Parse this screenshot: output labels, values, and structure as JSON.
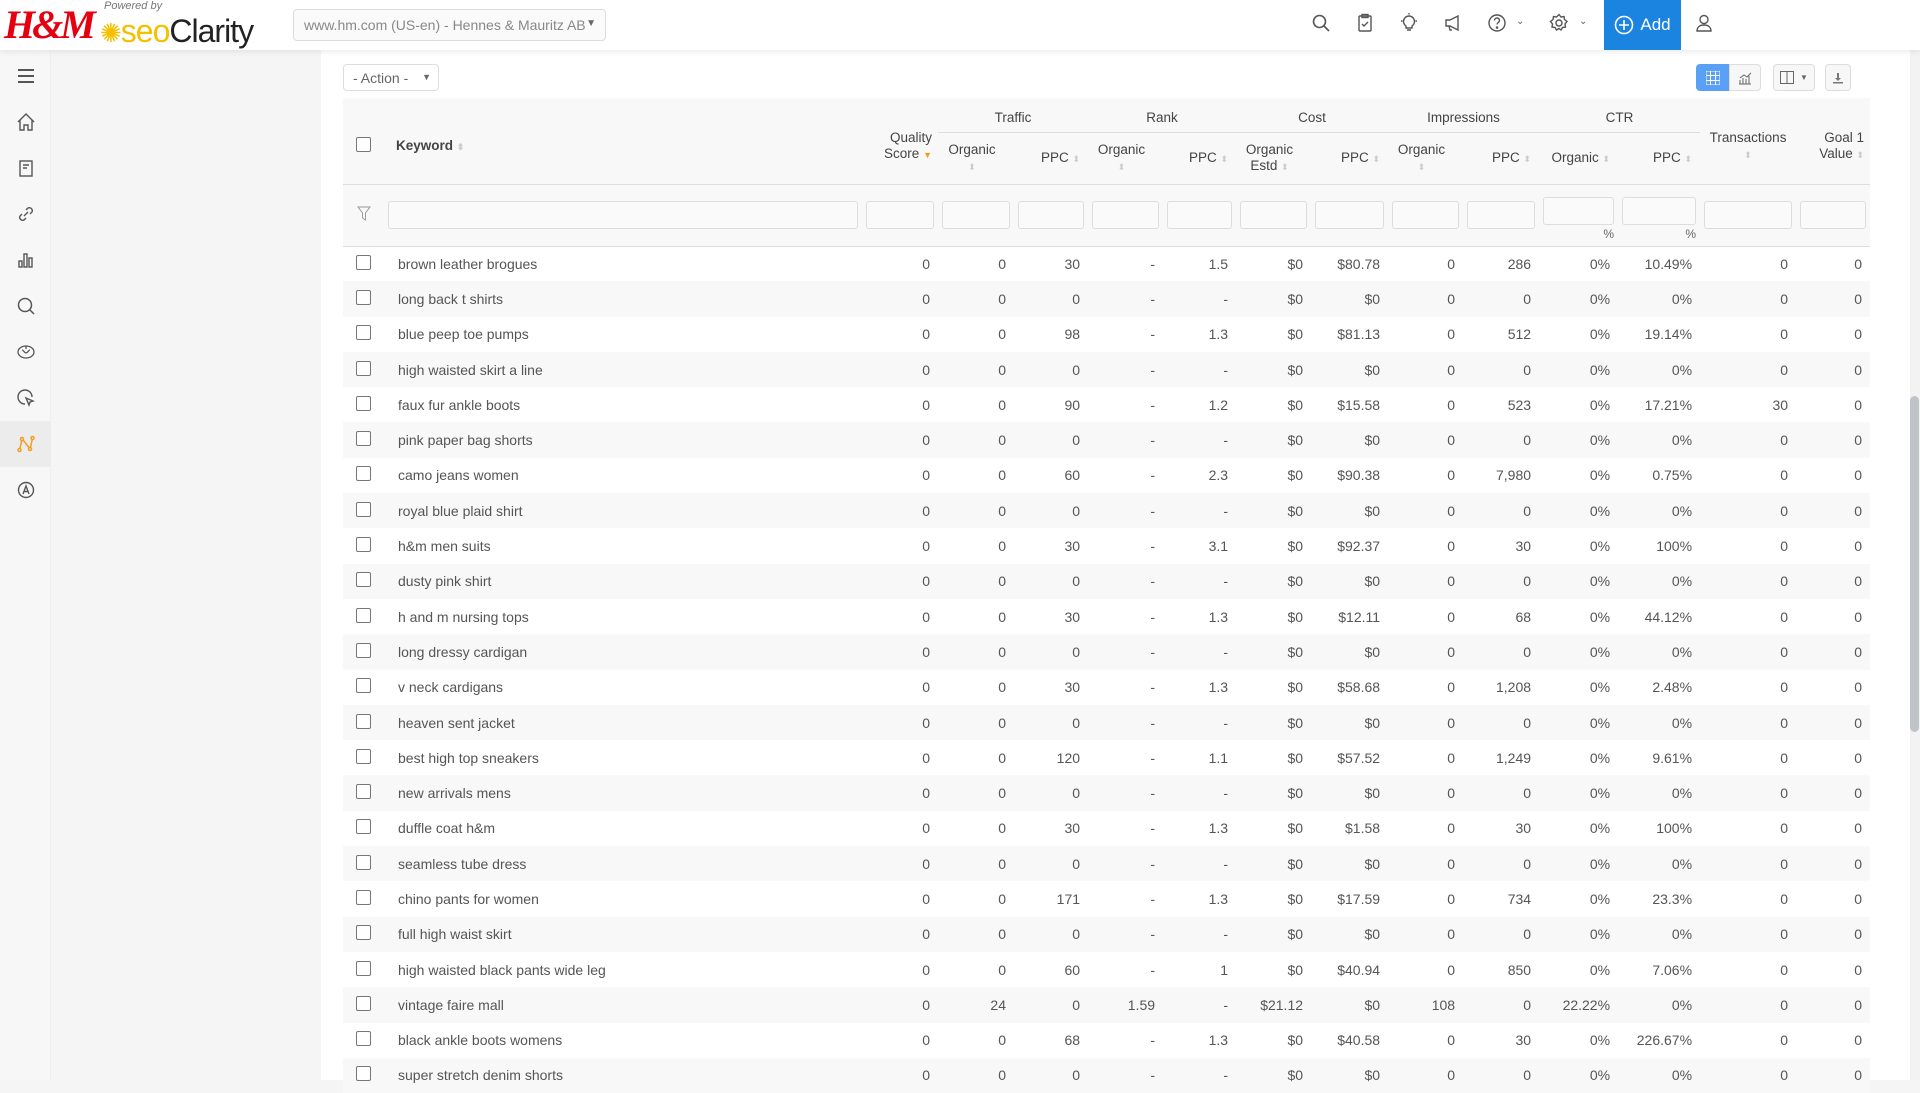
{
  "header": {
    "brand_logo": "H&M",
    "powered_by": "Powered by",
    "product_logo_a": "seo",
    "product_logo_b": "Clarity",
    "site_selector": "www.hm.com (US-en) - Hennes & Mauritz AB",
    "add_label": "Add",
    "icons": [
      "search-icon",
      "clipboard-check-icon",
      "lightbulb-icon",
      "megaphone-icon",
      "help-icon",
      "settings-icon",
      "user-icon"
    ]
  },
  "sidebar": {
    "items": [
      "menu",
      "home",
      "reports",
      "links",
      "analytics",
      "search",
      "brain",
      "click-research",
      "content-fusion",
      "automation"
    ],
    "active": "content-fusion",
    "active_color": "#f0a020"
  },
  "toolbar": {
    "action_label": "- Action -",
    "view_modes": [
      "table",
      "chart"
    ],
    "active_view": "table",
    "accent": "#5aa0f5"
  },
  "table": {
    "columns": {
      "keyword": "Keyword",
      "quality_score": "Quality Score",
      "groups": [
        "Traffic",
        "Rank",
        "Cost",
        "Impressions",
        "CTR"
      ],
      "organic": "Organic",
      "ppc": "PPC",
      "organic_estd": "Organic Estd",
      "transactions": "Transactions",
      "goal1": "Goal 1 Value"
    },
    "pct_label": "%",
    "rows": [
      [
        "brown leather brogues",
        "0",
        "0",
        "30",
        "-",
        "1.5",
        "$0",
        "$80.78",
        "0",
        "286",
        "0%",
        "10.49%",
        "0",
        "0"
      ],
      [
        "long back t shirts",
        "0",
        "0",
        "0",
        "-",
        "-",
        "$0",
        "$0",
        "0",
        "0",
        "0%",
        "0%",
        "0",
        "0"
      ],
      [
        "blue peep toe pumps",
        "0",
        "0",
        "98",
        "-",
        "1.3",
        "$0",
        "$81.13",
        "0",
        "512",
        "0%",
        "19.14%",
        "0",
        "0"
      ],
      [
        "high waisted skirt a line",
        "0",
        "0",
        "0",
        "-",
        "-",
        "$0",
        "$0",
        "0",
        "0",
        "0%",
        "0%",
        "0",
        "0"
      ],
      [
        "faux fur ankle boots",
        "0",
        "0",
        "90",
        "-",
        "1.2",
        "$0",
        "$15.58",
        "0",
        "523",
        "0%",
        "17.21%",
        "30",
        "0"
      ],
      [
        "pink paper bag shorts",
        "0",
        "0",
        "0",
        "-",
        "-",
        "$0",
        "$0",
        "0",
        "0",
        "0%",
        "0%",
        "0",
        "0"
      ],
      [
        "camo jeans women",
        "0",
        "0",
        "60",
        "-",
        "2.3",
        "$0",
        "$90.38",
        "0",
        "7,980",
        "0%",
        "0.75%",
        "0",
        "0"
      ],
      [
        "royal blue plaid shirt",
        "0",
        "0",
        "0",
        "-",
        "-",
        "$0",
        "$0",
        "0",
        "0",
        "0%",
        "0%",
        "0",
        "0"
      ],
      [
        "h&m men suits",
        "0",
        "0",
        "30",
        "-",
        "3.1",
        "$0",
        "$92.37",
        "0",
        "30",
        "0%",
        "100%",
        "0",
        "0"
      ],
      [
        "dusty pink shirt",
        "0",
        "0",
        "0",
        "-",
        "-",
        "$0",
        "$0",
        "0",
        "0",
        "0%",
        "0%",
        "0",
        "0"
      ],
      [
        "h and m nursing tops",
        "0",
        "0",
        "30",
        "-",
        "1.3",
        "$0",
        "$12.11",
        "0",
        "68",
        "0%",
        "44.12%",
        "0",
        "0"
      ],
      [
        "long dressy cardigan",
        "0",
        "0",
        "0",
        "-",
        "-",
        "$0",
        "$0",
        "0",
        "0",
        "0%",
        "0%",
        "0",
        "0"
      ],
      [
        "v neck cardigans",
        "0",
        "0",
        "30",
        "-",
        "1.3",
        "$0",
        "$58.68",
        "0",
        "1,208",
        "0%",
        "2.48%",
        "0",
        "0"
      ],
      [
        "heaven sent jacket",
        "0",
        "0",
        "0",
        "-",
        "-",
        "$0",
        "$0",
        "0",
        "0",
        "0%",
        "0%",
        "0",
        "0"
      ],
      [
        "best high top sneakers",
        "0",
        "0",
        "120",
        "-",
        "1.1",
        "$0",
        "$57.52",
        "0",
        "1,249",
        "0%",
        "9.61%",
        "0",
        "0"
      ],
      [
        "new arrivals mens",
        "0",
        "0",
        "0",
        "-",
        "-",
        "$0",
        "$0",
        "0",
        "0",
        "0%",
        "0%",
        "0",
        "0"
      ],
      [
        "duffle coat h&m",
        "0",
        "0",
        "30",
        "-",
        "1.3",
        "$0",
        "$1.58",
        "0",
        "30",
        "0%",
        "100%",
        "0",
        "0"
      ],
      [
        "seamless tube dress",
        "0",
        "0",
        "0",
        "-",
        "-",
        "$0",
        "$0",
        "0",
        "0",
        "0%",
        "0%",
        "0",
        "0"
      ],
      [
        "chino pants for women",
        "0",
        "0",
        "171",
        "-",
        "1.3",
        "$0",
        "$17.59",
        "0",
        "734",
        "0%",
        "23.3%",
        "0",
        "0"
      ],
      [
        "full high waist skirt",
        "0",
        "0",
        "0",
        "-",
        "-",
        "$0",
        "$0",
        "0",
        "0",
        "0%",
        "0%",
        "0",
        "0"
      ],
      [
        "high waisted black pants wide leg",
        "0",
        "0",
        "60",
        "-",
        "1",
        "$0",
        "$40.94",
        "0",
        "850",
        "0%",
        "7.06%",
        "0",
        "0"
      ],
      [
        "vintage faire mall",
        "0",
        "24",
        "0",
        "1.59",
        "-",
        "$21.12",
        "$0",
        "108",
        "0",
        "22.22%",
        "0%",
        "0",
        "0"
      ],
      [
        "black ankle boots womens",
        "0",
        "0",
        "68",
        "-",
        "1.3",
        "$0",
        "$40.58",
        "0",
        "30",
        "0%",
        "226.67%",
        "0",
        "0"
      ],
      [
        "super stretch denim shorts",
        "0",
        "0",
        "0",
        "-",
        "-",
        "$0",
        "$0",
        "0",
        "0",
        "0%",
        "0%",
        "0",
        "0"
      ]
    ]
  }
}
